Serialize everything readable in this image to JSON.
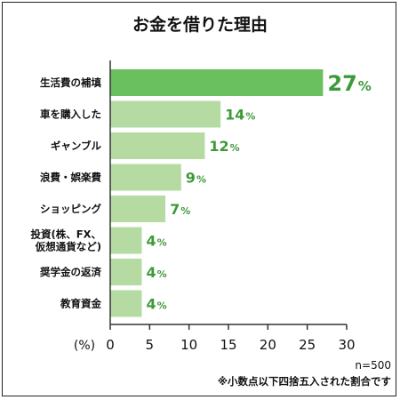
{
  "chart_data": {
    "type": "bar",
    "orientation": "horizontal",
    "title": "お金を借りた理由",
    "categories": [
      "生活費の補填",
      "車を購入した",
      "ギャンブル",
      "浪費・娯楽費",
      "ショッピング",
      "投資(株、FX、仮想通貨など)",
      "奨学金の返済",
      "教育資金"
    ],
    "category_lines": [
      [
        "生活費の補填"
      ],
      [
        "車を購入した"
      ],
      [
        "ギャンブル"
      ],
      [
        "浪費・娯楽費"
      ],
      [
        "ショッピング"
      ],
      [
        "投資(株、FX、",
        "仮想通貨など)"
      ],
      [
        "奨学金の返済"
      ],
      [
        "教育資金"
      ]
    ],
    "values": [
      27,
      14,
      12,
      9,
      7,
      4,
      4,
      4
    ],
    "value_unit": "%",
    "xlabel": "(%)",
    "xlim": [
      0,
      30
    ],
    "xticks": [
      0,
      5,
      10,
      15,
      20,
      25,
      30
    ],
    "grid": false,
    "legend": "none",
    "notes": [
      "n=500",
      "※小数点以下四捨五入された割合です"
    ],
    "colors": {
      "highlight_bar": "#6abf5e",
      "bar": "#b5dba3",
      "value_label": "#3d9a3a",
      "axis": "#333333",
      "text": "#111111"
    }
  }
}
